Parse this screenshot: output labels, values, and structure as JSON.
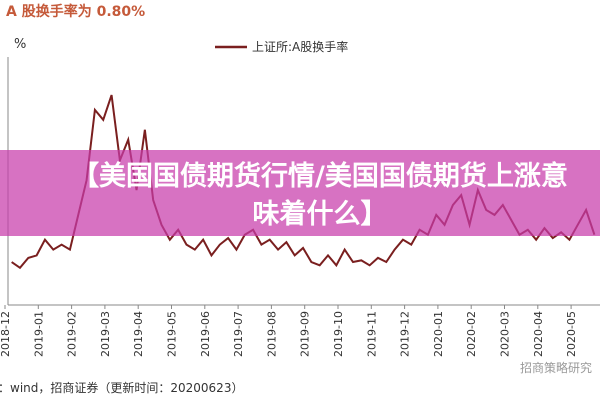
{
  "chart_data": {
    "type": "line",
    "title": "A 股换手率为 0.80%",
    "ylabel": "%",
    "source": "源：wind，招商证券（更新时间：20200623）",
    "watermark": "招商策略研究",
    "annotations": [
      "【美国国债期货行情/美国国债期货上涨意味着什么】"
    ],
    "xlim": [
      0,
      17.8
    ],
    "xticks": [
      {
        "value": 0,
        "label": "2018-12"
      },
      {
        "value": 1,
        "label": "2019-01"
      },
      {
        "value": 2,
        "label": "2019-02"
      },
      {
        "value": 3,
        "label": "2019-03"
      },
      {
        "value": 4,
        "label": "2019-04"
      },
      {
        "value": 5,
        "label": "2019-05"
      },
      {
        "value": 6,
        "label": "2019-06"
      },
      {
        "value": 7,
        "label": "2019-07"
      },
      {
        "value": 8,
        "label": "2019-08"
      },
      {
        "value": 9,
        "label": "2019-09"
      },
      {
        "value": 10,
        "label": "2019-10"
      },
      {
        "value": 11,
        "label": "2019-11"
      },
      {
        "value": 12,
        "label": "2019-12"
      },
      {
        "value": 13,
        "label": "2020-01"
      },
      {
        "value": 14,
        "label": "2020-02"
      },
      {
        "value": 15,
        "label": "2020-03"
      },
      {
        "value": 16,
        "label": "2020-04"
      },
      {
        "value": 17,
        "label": "2020-05"
      }
    ],
    "ylim": [
      0,
      3
    ],
    "x": [
      0.2,
      0.45,
      0.7,
      0.95,
      1.2,
      1.45,
      1.7,
      1.95,
      2.2,
      2.45,
      2.7,
      2.95,
      3.2,
      3.45,
      3.7,
      3.95,
      4.2,
      4.45,
      4.7,
      4.95,
      5.2,
      5.45,
      5.7,
      5.95,
      6.2,
      6.45,
      6.7,
      6.95,
      7.2,
      7.45,
      7.7,
      7.95,
      8.2,
      8.45,
      8.7,
      8.95,
      9.2,
      9.45,
      9.7,
      9.95,
      10.2,
      10.45,
      10.7,
      10.95,
      11.2,
      11.45,
      11.7,
      11.95,
      12.2,
      12.45,
      12.7,
      12.95,
      13.2,
      13.45,
      13.7,
      13.95,
      14.2,
      14.45,
      14.7,
      14.95,
      15.2,
      15.45,
      15.7,
      15.95,
      16.2,
      16.45,
      16.7,
      16.95,
      17.2,
      17.45,
      17.7
    ],
    "series": [
      {
        "name": "上证所:A股换手率",
        "color": "#7a1f1f",
        "values": [
          0.52,
          0.45,
          0.57,
          0.6,
          0.79,
          0.67,
          0.73,
          0.67,
          1.09,
          1.51,
          2.36,
          2.24,
          2.54,
          1.75,
          2.0,
          1.39,
          2.12,
          1.27,
          0.97,
          0.79,
          0.91,
          0.73,
          0.67,
          0.79,
          0.6,
          0.73,
          0.81,
          0.67,
          0.85,
          0.91,
          0.73,
          0.79,
          0.67,
          0.76,
          0.6,
          0.69,
          0.52,
          0.48,
          0.6,
          0.48,
          0.67,
          0.52,
          0.54,
          0.48,
          0.57,
          0.52,
          0.67,
          0.79,
          0.73,
          0.91,
          0.85,
          1.09,
          0.97,
          1.21,
          1.33,
          0.97,
          1.39,
          1.15,
          1.09,
          1.21,
          1.03,
          0.85,
          0.91,
          0.79,
          0.93,
          0.81,
          0.88,
          0.79,
          0.97,
          1.15,
          0.85
        ]
      }
    ]
  }
}
